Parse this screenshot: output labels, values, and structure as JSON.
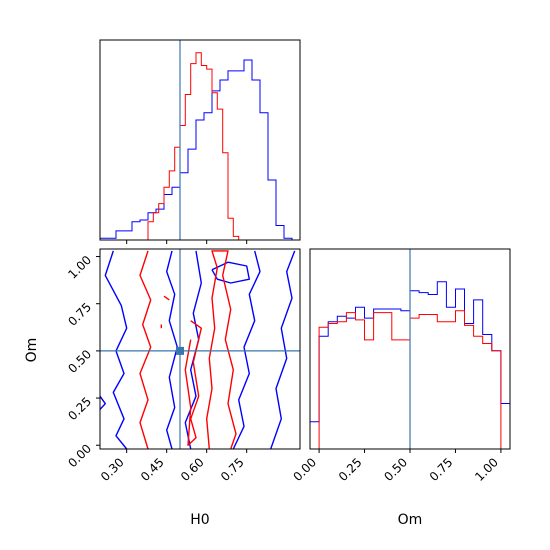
{
  "chart_data": {
    "type": "corner",
    "parameters": [
      "H0",
      "Om"
    ],
    "truth": {
      "H0": 0.5,
      "Om": 0.5
    },
    "colors": {
      "series_a": "#0000ff",
      "series_b": "#ff0000",
      "truth": "#3b75af",
      "axes": "#000000"
    },
    "panels": {
      "h0_hist": {
        "type": "histogram",
        "parameter": "H0",
        "xlim": [
          0.2,
          0.95
        ],
        "ylim": [
          0,
          1.1
        ],
        "series": [
          {
            "color": "blue",
            "edges": [
              0.2,
              0.23,
              0.26,
              0.29,
              0.32,
              0.35,
              0.38,
              0.41,
              0.44,
              0.47,
              0.5,
              0.53,
              0.56,
              0.59,
              0.62,
              0.65,
              0.68,
              0.71,
              0.74,
              0.77,
              0.8,
              0.83,
              0.86,
              0.89,
              0.92,
              0.95
            ],
            "values": [
              0.01,
              0.01,
              0.05,
              0.05,
              0.1,
              0.11,
              0.15,
              0.17,
              0.25,
              0.29,
              0.37,
              0.5,
              0.66,
              0.7,
              0.82,
              0.88,
              0.93,
              0.93,
              0.99,
              0.88,
              0.7,
              0.33,
              0.08,
              0.01,
              0.0
            ]
          },
          {
            "color": "red",
            "edges": [
              0.38,
              0.4,
              0.42,
              0.44,
              0.46,
              0.48,
              0.5,
              0.52,
              0.54,
              0.56,
              0.58,
              0.6,
              0.62,
              0.64,
              0.66,
              0.68,
              0.7,
              0.72
            ],
            "values": [
              0.1,
              0.15,
              0.2,
              0.29,
              0.38,
              0.51,
              0.63,
              0.8,
              0.97,
              1.03,
              0.96,
              0.94,
              0.81,
              0.72,
              0.48,
              0.12,
              0.02
            ]
          }
        ]
      },
      "om_hist": {
        "type": "histogram",
        "parameter": "Om",
        "xlim": [
          -0.05,
          1.05
        ],
        "xticks": [
          "0.00",
          "0.25",
          "0.50",
          "0.75",
          "1.00"
        ],
        "ylim": [
          0,
          1.1
        ],
        "series": [
          {
            "color": "blue",
            "edges": [
              -0.05,
              0.0,
              0.05,
              0.1,
              0.15,
              0.2,
              0.25,
              0.3,
              0.35,
              0.4,
              0.45,
              0.5,
              0.55,
              0.6,
              0.65,
              0.7,
              0.75,
              0.8,
              0.85,
              0.9,
              0.95,
              1.0,
              1.05
            ],
            "values": [
              0.15,
              0.62,
              0.7,
              0.73,
              0.72,
              0.78,
              0.72,
              0.77,
              0.77,
              0.77,
              0.76,
              0.87,
              0.86,
              0.85,
              0.92,
              0.78,
              0.88,
              0.69,
              0.82,
              0.63,
              0.54,
              0.25
            ]
          },
          {
            "color": "red",
            "edges": [
              0.0,
              0.05,
              0.1,
              0.15,
              0.2,
              0.25,
              0.3,
              0.35,
              0.4,
              0.45,
              0.5,
              0.55,
              0.6,
              0.65,
              0.7,
              0.75,
              0.8,
              0.85,
              0.9,
              0.95,
              1.0
            ],
            "values": [
              0.67,
              0.69,
              0.7,
              0.75,
              0.71,
              0.6,
              0.75,
              0.75,
              0.6,
              0.6,
              0.72,
              0.74,
              0.74,
              0.7,
              0.7,
              0.76,
              0.68,
              0.62,
              0.58,
              0.54
            ]
          }
        ]
      },
      "joint": {
        "type": "contour",
        "x_parameter": "H0",
        "y_parameter": "Om",
        "xlim": [
          0.2,
          0.95
        ],
        "ylim": [
          -0.02,
          1.04
        ],
        "xticks": [
          "0.30",
          "0.45",
          "0.60",
          "0.75"
        ],
        "yticks": [
          "0.00",
          "0.25",
          "0.50",
          "0.75",
          "1.00"
        ],
        "xlabel": "H0",
        "ylabel": "Om",
        "series": [
          {
            "color": "blue",
            "contours": [
              [
                [
                  0.25,
                  1.03
                ],
                [
                  0.22,
                  0.9
                ],
                [
                  0.28,
                  0.74
                ],
                [
                  0.3,
                  0.62
                ],
                [
                  0.26,
                  0.5
                ],
                [
                  0.29,
                  0.38
                ],
                [
                  0.25,
                  0.28
                ],
                [
                  0.29,
                  0.14
                ],
                [
                  0.26,
                  0.05
                ],
                [
                  0.3,
                  -0.02
                ]
              ],
              [
                [
                  0.2,
                  0.26
                ],
                [
                  0.22,
                  0.22
                ],
                [
                  0.2,
                  0.19
                ]
              ],
              [
                [
                  0.47,
                  1.03
                ],
                [
                  0.45,
                  0.92
                ],
                [
                  0.48,
                  0.8
                ],
                [
                  0.46,
                  0.66
                ],
                [
                  0.49,
                  0.52
                ],
                [
                  0.46,
                  0.36
                ],
                [
                  0.48,
                  0.2
                ],
                [
                  0.45,
                  0.08
                ],
                [
                  0.47,
                  -0.02
                ]
              ],
              [
                [
                  0.54,
                  -0.02
                ],
                [
                  0.52,
                  0.12
                ],
                [
                  0.56,
                  0.26
                ],
                [
                  0.54,
                  0.4
                ],
                [
                  0.57,
                  0.56
                ],
                [
                  0.55,
                  0.7
                ],
                [
                  0.58,
                  0.86
                ],
                [
                  0.56,
                  1.03
                ]
              ],
              [
                [
                  0.7,
                  -0.02
                ],
                [
                  0.74,
                  0.1
                ],
                [
                  0.72,
                  0.24
                ],
                [
                  0.76,
                  0.38
                ],
                [
                  0.74,
                  0.52
                ],
                [
                  0.78,
                  0.66
                ],
                [
                  0.76,
                  0.8
                ],
                [
                  0.8,
                  0.92
                ],
                [
                  0.78,
                  1.03
                ]
              ],
              [
                [
                  0.84,
                  -0.02
                ],
                [
                  0.88,
                  0.14
                ],
                [
                  0.86,
                  0.3
                ],
                [
                  0.9,
                  0.46
                ],
                [
                  0.88,
                  0.62
                ],
                [
                  0.92,
                  0.78
                ],
                [
                  0.9,
                  0.92
                ],
                [
                  0.93,
                  1.03
                ]
              ],
              [
                [
                  0.62,
                  0.93
                ],
                [
                  0.68,
                  0.97
                ],
                [
                  0.75,
                  0.95
                ],
                [
                  0.76,
                  0.88
                ],
                [
                  0.69,
                  0.86
                ],
                [
                  0.64,
                  0.88
                ],
                [
                  0.62,
                  0.93
                ]
              ]
            ]
          },
          {
            "color": "red",
            "contours": [
              [
                [
                  0.38,
                  1.03
                ],
                [
                  0.35,
                  0.9
                ],
                [
                  0.39,
                  0.77
                ],
                [
                  0.36,
                  0.64
                ],
                [
                  0.39,
                  0.52
                ],
                [
                  0.35,
                  0.38
                ],
                [
                  0.38,
                  0.24
                ],
                [
                  0.35,
                  0.12
                ],
                [
                  0.38,
                  -0.02
                ]
              ],
              [
                [
                  0.44,
                  0.79
                ],
                [
                  0.46,
                  0.77
                ]
              ],
              [
                [
                  0.43,
                  0.64
                ],
                [
                  0.43,
                  0.62
                ]
              ],
              [
                [
                  0.61,
                  -0.02
                ],
                [
                  0.6,
                  0.14
                ],
                [
                  0.62,
                  0.3
                ],
                [
                  0.61,
                  0.46
                ],
                [
                  0.63,
                  0.62
                ],
                [
                  0.62,
                  0.78
                ],
                [
                  0.64,
                  0.94
                ],
                [
                  0.62,
                  1.03
                ],
                [
                  0.68,
                  1.03
                ],
                [
                  0.66,
                  0.9
                ],
                [
                  0.69,
                  0.72
                ],
                [
                  0.67,
                  0.56
                ],
                [
                  0.7,
                  0.4
                ],
                [
                  0.68,
                  0.22
                ],
                [
                  0.71,
                  0.06
                ],
                [
                  0.69,
                  -0.02
                ]
              ],
              [
                [
                  0.54,
                  0.66
                ],
                [
                  0.58,
                  0.62
                ],
                [
                  0.55,
                  0.44
                ],
                [
                  0.57,
                  0.26
                ],
                [
                  0.54,
                  0.14
                ],
                [
                  0.56,
                  0.04
                ],
                [
                  0.53,
                  0.0
                ],
                [
                  0.54,
                  0.2
                ],
                [
                  0.52,
                  0.4
                ],
                [
                  0.54,
                  0.56
                ]
              ]
            ]
          }
        ]
      }
    }
  }
}
